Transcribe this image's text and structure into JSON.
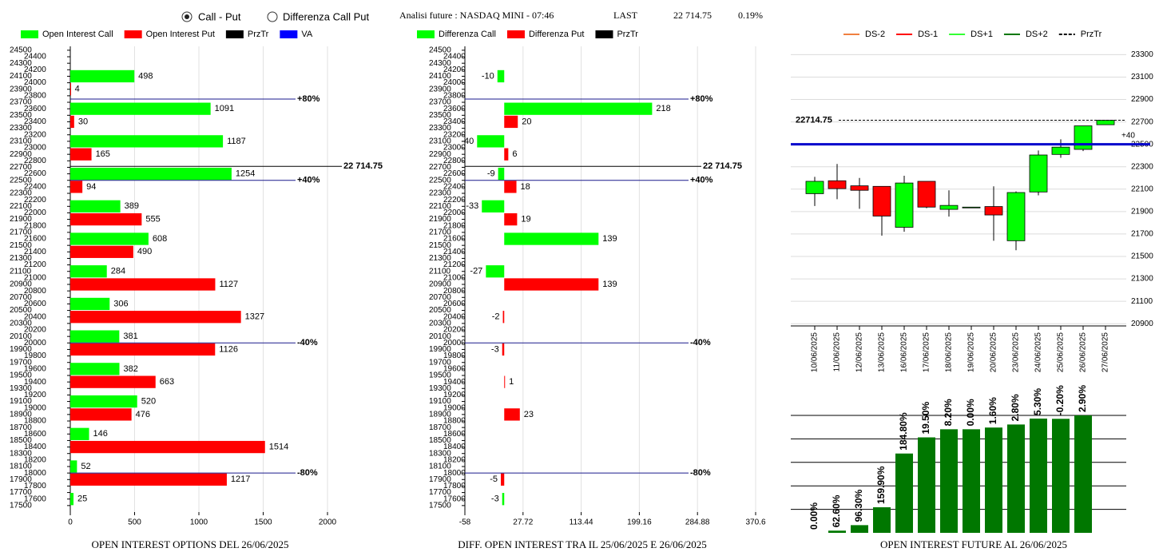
{
  "header": {
    "options": [
      "Call - Put",
      "Differenza Call Put"
    ],
    "selected": 0,
    "info": "Analisi future : NASDAQ MINI - 07:46",
    "last_label": "LAST",
    "last": "22 714.75",
    "change": "0.19%"
  },
  "chart_data": [
    {
      "type": "hbar",
      "title": "OPEN INTEREST OPTIONS DEL 26/06/2025",
      "strikes": [
        24000,
        23500,
        23000,
        22500,
        22000,
        21500,
        21000,
        20500,
        20000,
        19500,
        19000,
        18500,
        18000,
        17500
      ],
      "series": [
        {
          "name": "Open Interest Call",
          "color": "#00ff00",
          "values": [
            498,
            1091,
            1187,
            1254,
            389,
            608,
            284,
            306,
            381,
            382,
            520,
            146,
            52,
            25
          ]
        },
        {
          "name": "Open Interest Put",
          "color": "#ff0000",
          "values": [
            4,
            30,
            165,
            94,
            555,
            490,
            1127,
            1327,
            1126,
            663,
            476,
            1514,
            1217,
            null
          ]
        }
      ],
      "lines": [
        {
          "name": "PrzTr",
          "color": "#000000",
          "levels": [
            {
              "value": 22714.75,
              "label": "22 714.75"
            }
          ]
        },
        {
          "name": "VA",
          "color": "#0000ff",
          "line_color": "#1a1a8c",
          "levels": [
            {
              "value": 23750,
              "label": "+80%"
            },
            {
              "value": 22500,
              "label": "+40%"
            },
            {
              "value": 20000,
              "label": "-40%"
            },
            {
              "value": 18000,
              "label": "-80%"
            }
          ]
        }
      ],
      "xlim": [
        0,
        2000
      ],
      "xticks": [
        0,
        500,
        1000,
        1500,
        2000
      ],
      "ylim": [
        17400,
        24560
      ],
      "yticks": [
        17500,
        17600,
        17700,
        17800,
        17900,
        18000,
        18100,
        18200,
        18300,
        18400,
        18500,
        18600,
        18700,
        18800,
        18900,
        19000,
        19100,
        19200,
        19300,
        19400,
        19500,
        19600,
        19700,
        19800,
        19900,
        20000,
        20100,
        20200,
        20300,
        20400,
        20500,
        20600,
        20700,
        20800,
        20900,
        21000,
        21100,
        21200,
        21300,
        21400,
        21500,
        21600,
        21700,
        21800,
        21900,
        22000,
        22100,
        22200,
        22300,
        22400,
        22500,
        22600,
        22700,
        22800,
        22900,
        23000,
        23100,
        23200,
        23300,
        23400,
        23500,
        23600,
        23700,
        23800,
        23900,
        24000,
        24100,
        24200,
        24300,
        24400,
        24500
      ],
      "grid": true
    },
    {
      "type": "hbar",
      "title": "DIFF. OPEN INTEREST TRA IL 25/06/2025 E 26/06/2025",
      "strikes": [
        24000,
        23500,
        23000,
        22500,
        22000,
        21500,
        21000,
        20500,
        20000,
        19500,
        19000,
        18500,
        18000,
        17500
      ],
      "series": [
        {
          "name": "Differenza Call",
          "color": "#00ff00",
          "values": [
            -10,
            218,
            -40,
            -9,
            -33,
            139,
            -27,
            null,
            null,
            null,
            null,
            null,
            null,
            -3
          ]
        },
        {
          "name": "Differenza Put",
          "color": "#ff0000",
          "values": [
            null,
            20,
            6,
            18,
            19,
            null,
            139,
            -2,
            -3,
            1,
            23,
            null,
            -5,
            null
          ]
        }
      ],
      "lines": [
        {
          "name": "PrzTr",
          "color": "#000000",
          "levels": [
            {
              "value": 22714.75,
              "label": "22 714.75"
            }
          ]
        },
        {
          "color": "#1a1a8c",
          "levels": [
            {
              "value": 23750,
              "label": "+80%"
            },
            {
              "value": 22500,
              "label": "+40%"
            },
            {
              "value": 20000,
              "label": "-40%"
            },
            {
              "value": 18000,
              "label": "-80%"
            }
          ]
        }
      ],
      "xlim": [
        -58,
        370.6
      ],
      "xticks": [
        -58,
        27.72,
        113.44,
        199.16,
        284.88,
        370.6
      ],
      "ylim": [
        17400,
        24560
      ],
      "yticks": [
        17500,
        17600,
        17700,
        17800,
        17900,
        18000,
        18100,
        18200,
        18300,
        18400,
        18500,
        18600,
        18700,
        18800,
        18900,
        19000,
        19100,
        19200,
        19300,
        19400,
        19500,
        19600,
        19700,
        19800,
        19900,
        20000,
        20100,
        20200,
        20300,
        20400,
        20500,
        20600,
        20700,
        20800,
        20900,
        21000,
        21100,
        21200,
        21300,
        21400,
        21500,
        21600,
        21700,
        21800,
        21900,
        22000,
        22100,
        22200,
        22300,
        22400,
        22500,
        22600,
        22700,
        22800,
        22900,
        23000,
        23100,
        23200,
        23300,
        23400,
        23500,
        23600,
        23700,
        23800,
        23900,
        24000,
        24100,
        24200,
        24300,
        24400,
        24500
      ],
      "grid": true
    },
    {
      "type": "candlestick",
      "legend": [
        {
          "name": "DS-2",
          "color": "#f08040"
        },
        {
          "name": "DS-1",
          "color": "#ff0000"
        },
        {
          "name": "DS+1",
          "color": "#33ff33"
        },
        {
          "name": "DS+2",
          "color": "#007700"
        },
        {
          "name": "PrzTr",
          "color": "#000000",
          "dashed": true
        }
      ],
      "x": [
        "10/06/2025",
        "11/06/2025",
        "12/06/2025",
        "13/06/2025",
        "16/06/2025",
        "17/06/2025",
        "18/06/2025",
        "19/06/2025",
        "20/06/2025",
        "23/06/2025",
        "24/06/2025",
        "25/06/2025",
        "26/06/2025",
        "27/06/2025"
      ],
      "open": [
        22060,
        22175,
        22130,
        22125,
        21760,
        22170,
        21920,
        21940,
        21945,
        21640,
        22075,
        22410,
        22455,
        22675
      ],
      "high": [
        22210,
        22325,
        22200,
        22125,
        22220,
        22170,
        22090,
        21940,
        22125,
        22080,
        22445,
        22545,
        22665,
        22715
      ],
      "low": [
        21950,
        22010,
        21925,
        21685,
        21720,
        21930,
        21855,
        21940,
        21640,
        21555,
        22045,
        22380,
        22440,
        22675
      ],
      "close": [
        22170,
        22105,
        22090,
        21860,
        22155,
        21940,
        21955,
        21940,
        21870,
        22070,
        22405,
        22475,
        22665,
        22715
      ],
      "up_color": "#00ff00",
      "down_color": "#ff0000",
      "lines": [
        {
          "color": "#0000cc",
          "thick": true,
          "levels": [
            {
              "value": 22500,
              "label": "+40"
            }
          ]
        },
        {
          "color": "#000000",
          "dashed": true,
          "levels": [
            {
              "value": 22714.75,
              "label": "22714.75"
            }
          ]
        }
      ],
      "ylim": [
        20880,
        23360
      ],
      "yticks": [
        20900,
        21100,
        21300,
        21500,
        21700,
        21900,
        22100,
        22300,
        22500,
        22700,
        22900,
        23100,
        23300
      ],
      "grid": true
    },
    {
      "type": "growth_bar",
      "title": "OPEN INTEREST FUTURE AL 26/06/2025",
      "color": "#007700",
      "values": [
        0,
        62.6,
        96.3,
        159.9,
        184.8,
        19.5,
        8.2,
        0,
        1.6,
        2.8,
        5.3,
        -0.2,
        2.9
      ],
      "value_labels": [
        "0.00%",
        "62.60%",
        "96.30%",
        "159.90%",
        "184.80%",
        "19.50%",
        "8.20%",
        "0.00%",
        "1.60%",
        "2.80%",
        "5.30%",
        "-0.20%",
        "2.90%"
      ]
    }
  ]
}
